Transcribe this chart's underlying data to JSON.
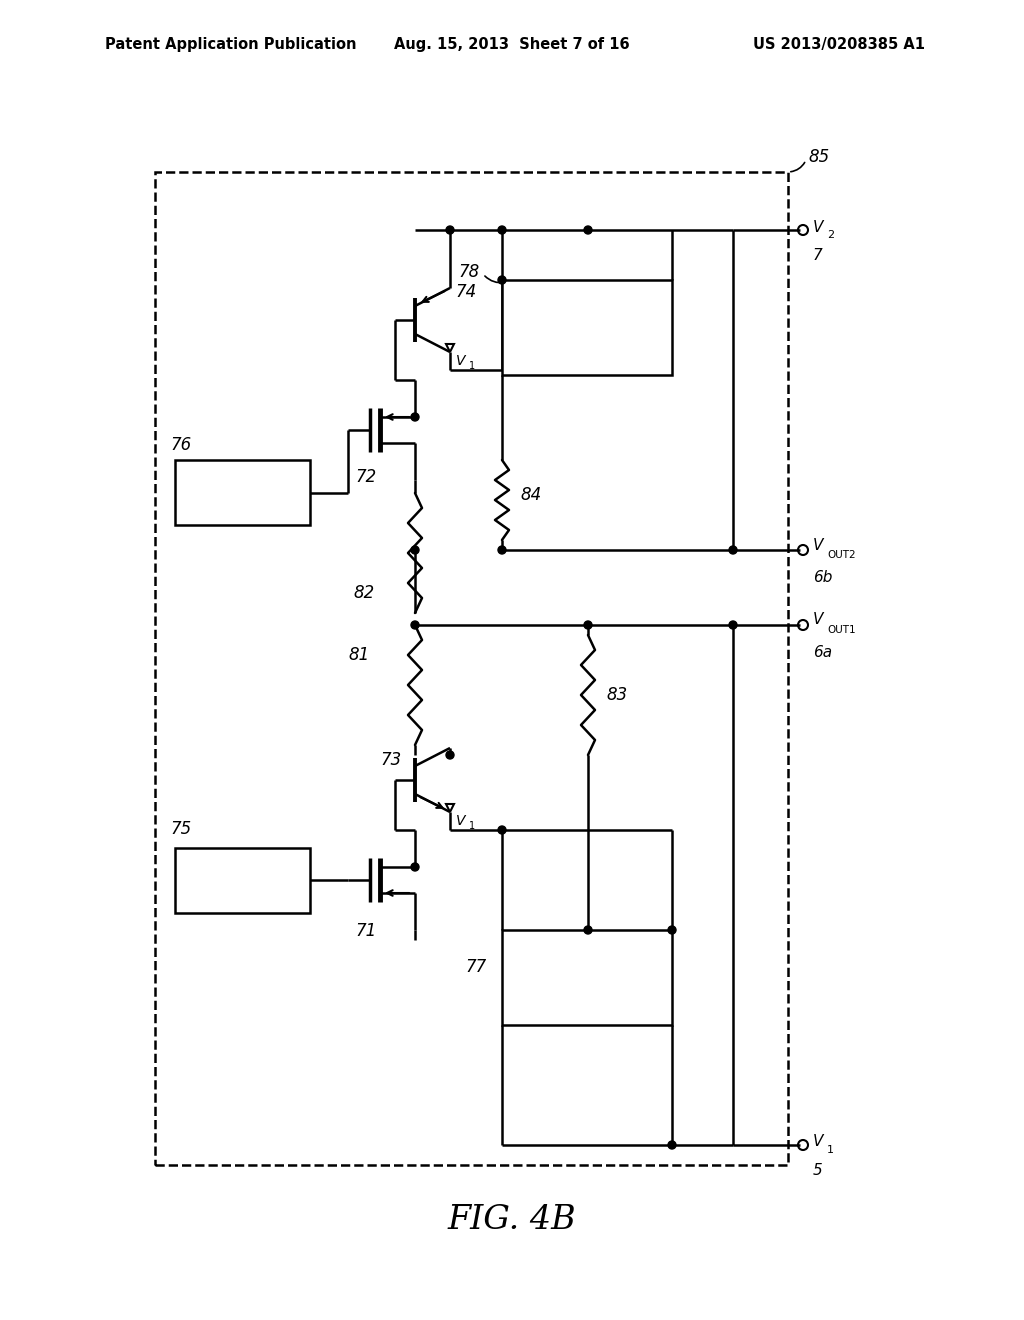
{
  "bg_color": "#ffffff",
  "header_left": "Patent Application Publication",
  "header_center": "Aug. 15, 2013  Sheet 7 of 16",
  "header_right": "US 2013/0208385 A1",
  "figure_label": "FIG. 4B"
}
